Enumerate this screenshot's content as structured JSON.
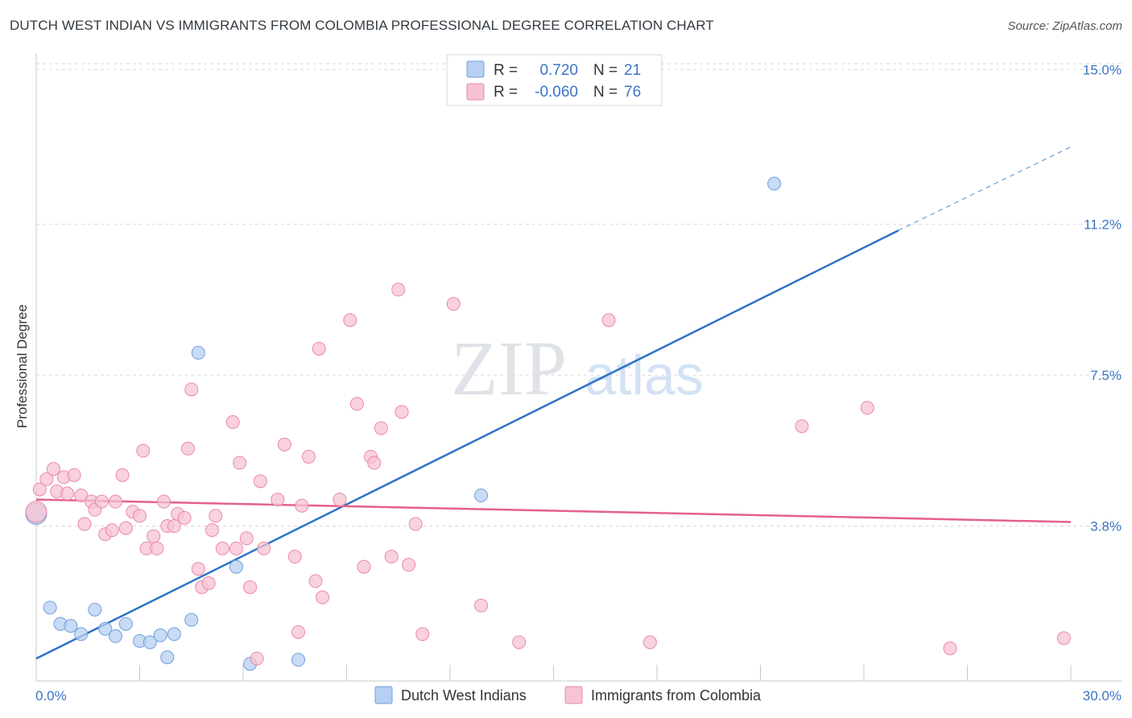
{
  "title": "DUTCH WEST INDIAN VS IMMIGRANTS FROM COLOMBIA PROFESSIONAL DEGREE CORRELATION CHART",
  "source": "Source: ZipAtlas.com",
  "watermark": {
    "zip": "ZIP",
    "atlas": "atlas"
  },
  "colors": {
    "blue_fill": "#b7cff2",
    "blue_stroke": "#6f9fdc",
    "blue_line": "#2f72c9",
    "pink_fill": "#f7c3d3",
    "pink_stroke": "#e98aa8",
    "pink_line": "#e4608e",
    "tick_text": "#3b74c9",
    "grid": "#d9d9d9"
  },
  "legend": {
    "rows": [
      {
        "r_label": "R =",
        "r_value": "0.720",
        "n_label": "N =",
        "n_value": "21",
        "series": "blue"
      },
      {
        "r_label": "R =",
        "r_value": "-0.060",
        "n_label": "N =",
        "n_value": "76",
        "series": "pink"
      }
    ]
  },
  "bottom_legend": [
    {
      "label": "Dutch West Indians",
      "series": "blue"
    },
    {
      "label": "Immigrants from Colombia",
      "series": "pink"
    }
  ],
  "chart_data": {
    "type": "scatter",
    "title": "DUTCH WEST INDIAN VS IMMIGRANTS FROM COLOMBIA PROFESSIONAL DEGREE CORRELATION CHART",
    "xlabel": "",
    "ylabel": "Professional Degree",
    "xlim": [
      0,
      30
    ],
    "ylim": [
      0,
      15.4
    ],
    "x_tick_labels": [
      "0.0%",
      "30.0%"
    ],
    "y_ticks": [
      3.8,
      7.5,
      11.2,
      15.0
    ],
    "y_tick_labels": [
      "3.8%",
      "7.5%",
      "11.2%",
      "15.0%"
    ],
    "grid": true,
    "legend_position": "top-center",
    "series": [
      {
        "name": "Dutch West Indians",
        "color": "blue",
        "r": 0.72,
        "n": 21,
        "points": [
          [
            0.0,
            4.1
          ],
          [
            0.4,
            1.8
          ],
          [
            0.7,
            1.4
          ],
          [
            1.0,
            1.35
          ],
          [
            1.3,
            1.15
          ],
          [
            1.7,
            1.75
          ],
          [
            2.0,
            1.28
          ],
          [
            2.3,
            1.1
          ],
          [
            2.6,
            1.4
          ],
          [
            3.0,
            0.98
          ],
          [
            3.3,
            0.95
          ],
          [
            3.6,
            1.12
          ],
          [
            3.8,
            0.58
          ],
          [
            4.0,
            1.15
          ],
          [
            4.5,
            1.5
          ],
          [
            4.7,
            8.05
          ],
          [
            5.8,
            2.8
          ],
          [
            6.2,
            0.42
          ],
          [
            7.6,
            0.52
          ],
          [
            12.9,
            4.55
          ],
          [
            21.4,
            12.2
          ]
        ],
        "trend": {
          "x": [
            0,
            25.0
          ],
          "y": [
            0.55,
            11.05
          ],
          "dashed_to": [
            30.0,
            13.1
          ]
        }
      },
      {
        "name": "Immigrants from Colombia",
        "color": "pink",
        "r": -0.06,
        "n": 76,
        "points": [
          [
            0.0,
            4.15
          ],
          [
            0.1,
            4.7
          ],
          [
            0.3,
            4.95
          ],
          [
            0.5,
            5.2
          ],
          [
            0.6,
            4.65
          ],
          [
            0.8,
            5.0
          ],
          [
            0.9,
            4.6
          ],
          [
            1.1,
            5.05
          ],
          [
            1.3,
            4.55
          ],
          [
            1.4,
            3.85
          ],
          [
            1.6,
            4.4
          ],
          [
            1.7,
            4.2
          ],
          [
            1.9,
            4.4
          ],
          [
            2.0,
            3.6
          ],
          [
            2.2,
            3.7
          ],
          [
            2.3,
            4.4
          ],
          [
            2.5,
            5.05
          ],
          [
            2.6,
            3.75
          ],
          [
            2.8,
            4.15
          ],
          [
            3.0,
            4.05
          ],
          [
            3.1,
            5.65
          ],
          [
            3.2,
            3.25
          ],
          [
            3.4,
            3.55
          ],
          [
            3.5,
            3.25
          ],
          [
            3.7,
            4.4
          ],
          [
            3.8,
            3.8
          ],
          [
            4.0,
            3.8
          ],
          [
            4.1,
            4.1
          ],
          [
            4.3,
            4.0
          ],
          [
            4.4,
            5.7
          ],
          [
            4.5,
            7.15
          ],
          [
            4.7,
            2.75
          ],
          [
            4.8,
            2.3
          ],
          [
            5.0,
            2.4
          ],
          [
            5.1,
            3.7
          ],
          [
            5.2,
            4.05
          ],
          [
            5.4,
            3.25
          ],
          [
            5.7,
            6.35
          ],
          [
            5.8,
            3.25
          ],
          [
            5.9,
            5.35
          ],
          [
            6.1,
            3.5
          ],
          [
            6.2,
            2.3
          ],
          [
            6.4,
            0.55
          ],
          [
            6.5,
            4.9
          ],
          [
            6.6,
            3.25
          ],
          [
            7.0,
            4.45
          ],
          [
            7.2,
            5.8
          ],
          [
            7.5,
            3.05
          ],
          [
            7.6,
            1.2
          ],
          [
            7.7,
            4.3
          ],
          [
            7.9,
            5.5
          ],
          [
            8.1,
            2.45
          ],
          [
            8.2,
            8.15
          ],
          [
            8.3,
            2.05
          ],
          [
            8.8,
            4.45
          ],
          [
            9.1,
            8.85
          ],
          [
            9.3,
            6.8
          ],
          [
            9.5,
            2.8
          ],
          [
            9.7,
            5.5
          ],
          [
            9.8,
            5.35
          ],
          [
            10.0,
            6.2
          ],
          [
            10.3,
            3.05
          ],
          [
            10.5,
            9.6
          ],
          [
            10.6,
            6.6
          ],
          [
            10.8,
            2.85
          ],
          [
            11.0,
            3.85
          ],
          [
            11.2,
            1.15
          ],
          [
            12.1,
            9.25
          ],
          [
            12.9,
            1.85
          ],
          [
            14.0,
            0.95
          ],
          [
            16.6,
            8.85
          ],
          [
            17.8,
            0.95
          ],
          [
            22.2,
            6.25
          ],
          [
            24.1,
            6.7
          ],
          [
            26.5,
            0.8
          ],
          [
            29.8,
            1.05
          ]
        ],
        "trend": {
          "x": [
            0,
            30.0
          ],
          "y": [
            4.45,
            3.9
          ]
        }
      }
    ]
  }
}
